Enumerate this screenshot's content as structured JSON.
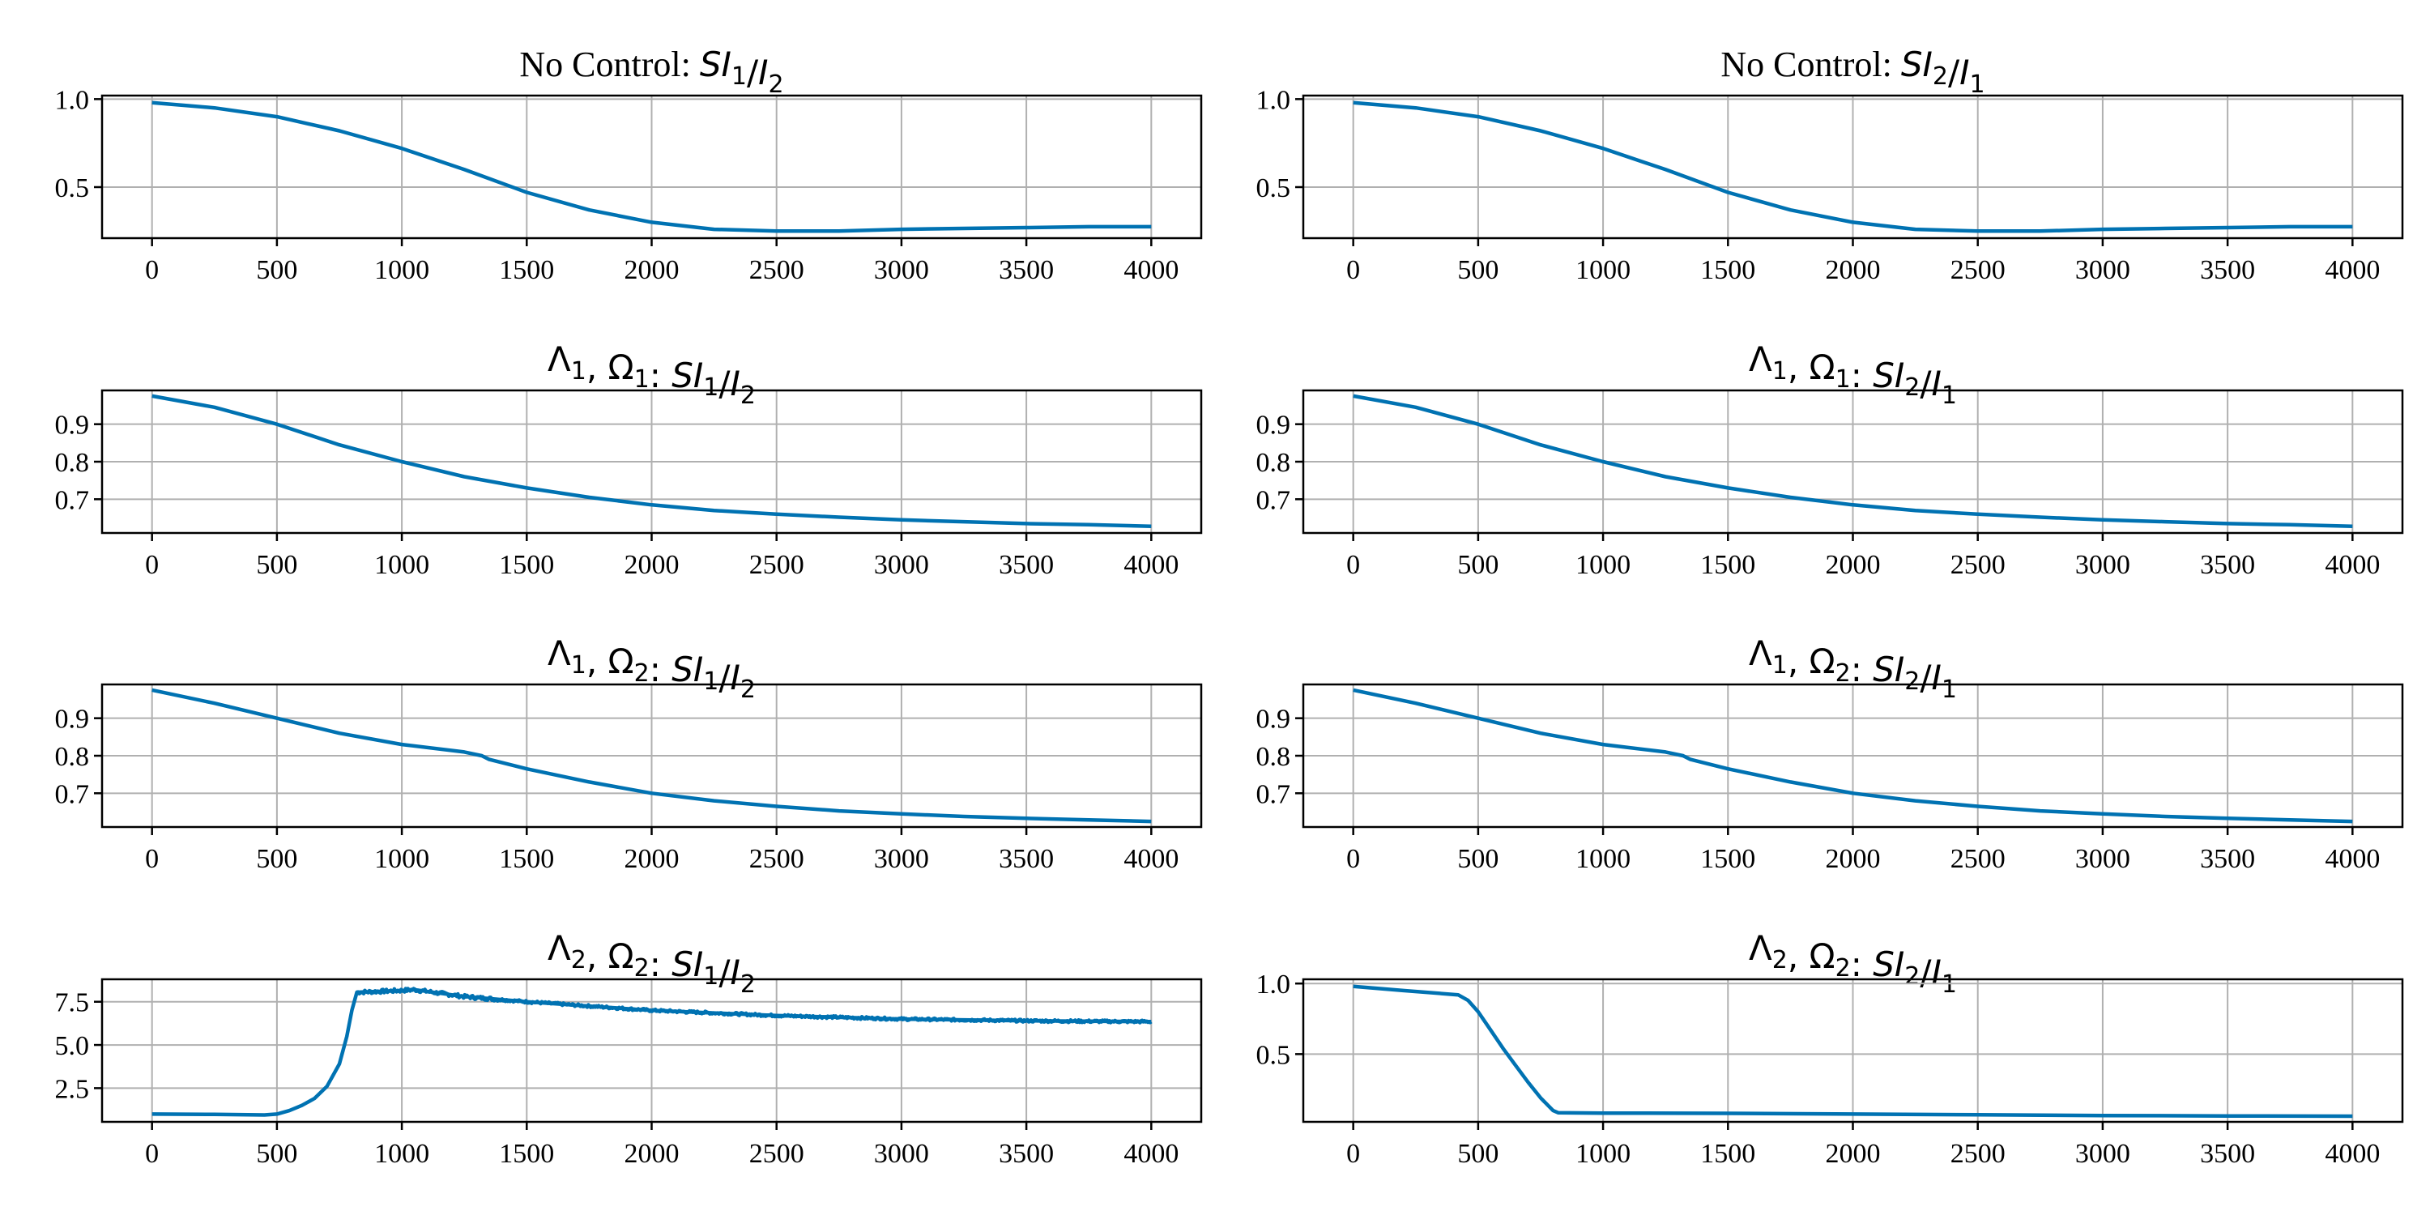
{
  "chart_data": [
    {
      "type": "line",
      "title": "No Control: SI1/I2",
      "title_parts": [
        "No Control:  ",
        "SI",
        "1",
        "/",
        "I",
        "2"
      ],
      "x_ticks": [
        "0",
        "500",
        "1000",
        "1500",
        "2000",
        "2500",
        "3000",
        "3500",
        "4000"
      ],
      "y_ticks": [
        "0.5",
        "1.0"
      ],
      "y_tick_values": [
        0.5,
        1.0
      ],
      "xlim": [
        -200,
        4200
      ],
      "ylim": [
        0.21,
        1.02
      ],
      "grid": true,
      "color": "#0072b2",
      "series": [
        {
          "x": [
            0,
            250,
            500,
            750,
            1000,
            1250,
            1500,
            1750,
            2000,
            2250,
            2500,
            2750,
            3000,
            3250,
            3500,
            3750,
            4000
          ],
          "y": [
            0.98,
            0.95,
            0.9,
            0.82,
            0.72,
            0.6,
            0.47,
            0.37,
            0.3,
            0.26,
            0.25,
            0.25,
            0.26,
            0.265,
            0.27,
            0.275,
            0.275
          ]
        }
      ]
    },
    {
      "type": "line",
      "title": "No Control: SI2/I1",
      "title_parts": [
        "No Control:  ",
        "SI",
        "2",
        "/",
        "I",
        "1"
      ],
      "x_ticks": [
        "0",
        "500",
        "1000",
        "1500",
        "2000",
        "2500",
        "3000",
        "3500",
        "4000"
      ],
      "y_ticks": [
        "0.5",
        "1.0"
      ],
      "y_tick_values": [
        0.5,
        1.0
      ],
      "xlim": [
        -200,
        4200
      ],
      "ylim": [
        0.21,
        1.02
      ],
      "grid": true,
      "color": "#0072b2",
      "series": [
        {
          "x": [
            0,
            250,
            500,
            750,
            1000,
            1250,
            1500,
            1750,
            2000,
            2250,
            2500,
            2750,
            3000,
            3250,
            3500,
            3750,
            4000
          ],
          "y": [
            0.98,
            0.95,
            0.9,
            0.82,
            0.72,
            0.6,
            0.47,
            0.37,
            0.3,
            0.26,
            0.25,
            0.25,
            0.26,
            0.265,
            0.27,
            0.275,
            0.275
          ]
        }
      ]
    },
    {
      "type": "line",
      "title": "Λ1, Ω1: SI1/I2",
      "title_parts": [
        "Λ",
        "1",
        ", Ω",
        "1",
        ":  ",
        "SI",
        "1",
        "/",
        "I",
        "2"
      ],
      "x_ticks": [
        "0",
        "500",
        "1000",
        "1500",
        "2000",
        "2500",
        "3000",
        "3500",
        "4000"
      ],
      "y_ticks": [
        "0.7",
        "0.8",
        "0.9"
      ],
      "y_tick_values": [
        0.7,
        0.8,
        0.9
      ],
      "xlim": [
        -200,
        4200
      ],
      "ylim": [
        0.61,
        0.99
      ],
      "grid": true,
      "color": "#0072b2",
      "series": [
        {
          "x": [
            0,
            250,
            500,
            750,
            1000,
            1250,
            1500,
            1750,
            2000,
            2250,
            2500,
            2750,
            3000,
            3250,
            3500,
            3750,
            4000
          ],
          "y": [
            0.975,
            0.945,
            0.9,
            0.845,
            0.8,
            0.76,
            0.73,
            0.705,
            0.685,
            0.67,
            0.66,
            0.652,
            0.645,
            0.64,
            0.635,
            0.632,
            0.628
          ]
        }
      ]
    },
    {
      "type": "line",
      "title": "Λ1, Ω1: SI2/I1",
      "title_parts": [
        "Λ",
        "1",
        ", Ω",
        "1",
        ":  ",
        "SI",
        "2",
        "/",
        "I",
        "1"
      ],
      "x_ticks": [
        "0",
        "500",
        "1000",
        "1500",
        "2000",
        "2500",
        "3000",
        "3500",
        "4000"
      ],
      "y_ticks": [
        "0.7",
        "0.8",
        "0.9"
      ],
      "y_tick_values": [
        0.7,
        0.8,
        0.9
      ],
      "xlim": [
        -200,
        4200
      ],
      "ylim": [
        0.61,
        0.99
      ],
      "grid": true,
      "color": "#0072b2",
      "series": [
        {
          "x": [
            0,
            250,
            500,
            750,
            1000,
            1250,
            1500,
            1750,
            2000,
            2250,
            2500,
            2750,
            3000,
            3250,
            3500,
            3750,
            4000
          ],
          "y": [
            0.975,
            0.945,
            0.9,
            0.845,
            0.8,
            0.76,
            0.73,
            0.705,
            0.685,
            0.67,
            0.66,
            0.652,
            0.645,
            0.64,
            0.635,
            0.632,
            0.628
          ]
        }
      ]
    },
    {
      "type": "line",
      "title": "Λ1, Ω2: SI1/I2",
      "title_parts": [
        "Λ",
        "1",
        ", Ω",
        "2",
        ":  ",
        "SI",
        "1",
        "/",
        "I",
        "2"
      ],
      "x_ticks": [
        "0",
        "500",
        "1000",
        "1500",
        "2000",
        "2500",
        "3000",
        "3500",
        "4000"
      ],
      "y_ticks": [
        "0.7",
        "0.8",
        "0.9"
      ],
      "y_tick_values": [
        0.7,
        0.8,
        0.9
      ],
      "xlim": [
        -200,
        4200
      ],
      "ylim": [
        0.61,
        0.99
      ],
      "grid": true,
      "color": "#0072b2",
      "series": [
        {
          "x": [
            0,
            250,
            500,
            750,
            1000,
            1250,
            1320,
            1350,
            1500,
            1750,
            2000,
            2250,
            2500,
            2750,
            3000,
            3250,
            3500,
            3750,
            4000
          ],
          "y": [
            0.975,
            0.94,
            0.9,
            0.86,
            0.83,
            0.81,
            0.8,
            0.79,
            0.765,
            0.73,
            0.7,
            0.68,
            0.665,
            0.653,
            0.645,
            0.638,
            0.633,
            0.629,
            0.625
          ]
        }
      ]
    },
    {
      "type": "line",
      "title": "Λ1, Ω2: SI2/I1",
      "title_parts": [
        "Λ",
        "1",
        ", Ω",
        "2",
        ":  ",
        "SI",
        "2",
        "/",
        "I",
        "1"
      ],
      "x_ticks": [
        "0",
        "500",
        "1000",
        "1500",
        "2000",
        "2500",
        "3000",
        "3500",
        "4000"
      ],
      "y_ticks": [
        "0.7",
        "0.8",
        "0.9"
      ],
      "y_tick_values": [
        0.7,
        0.8,
        0.9
      ],
      "xlim": [
        -200,
        4200
      ],
      "ylim": [
        0.61,
        0.99
      ],
      "grid": true,
      "color": "#0072b2",
      "series": [
        {
          "x": [
            0,
            250,
            500,
            750,
            1000,
            1250,
            1320,
            1350,
            1500,
            1750,
            2000,
            2250,
            2500,
            2750,
            3000,
            3250,
            3500,
            3750,
            4000
          ],
          "y": [
            0.975,
            0.94,
            0.9,
            0.86,
            0.83,
            0.81,
            0.8,
            0.79,
            0.765,
            0.73,
            0.7,
            0.68,
            0.665,
            0.653,
            0.645,
            0.638,
            0.633,
            0.629,
            0.625
          ]
        }
      ]
    },
    {
      "type": "line",
      "title": "Λ2, Ω2: SI1/I2",
      "title_parts": [
        "Λ",
        "2",
        ", Ω",
        "2",
        ":  ",
        "SI",
        "1",
        "/",
        "I",
        "2"
      ],
      "x_ticks": [
        "0",
        "500",
        "1000",
        "1500",
        "2000",
        "2500",
        "3000",
        "3500",
        "4000"
      ],
      "y_ticks": [
        "2.5",
        "5.0",
        "7.5"
      ],
      "y_tick_values": [
        2.5,
        5.0,
        7.5
      ],
      "xlim": [
        -200,
        4200
      ],
      "ylim": [
        0.55,
        8.8
      ],
      "grid": true,
      "color": "#0072b2",
      "noisy_from_x": 820,
      "series": [
        {
          "x": [
            0,
            250,
            450,
            500,
            550,
            600,
            650,
            700,
            750,
            780,
            800,
            820,
            1000,
            1050,
            1250,
            1500,
            1750,
            2000,
            2250,
            2500,
            2750,
            3000,
            3250,
            3500,
            3750,
            4000
          ],
          "y": [
            1.0,
            0.98,
            0.95,
            1.0,
            1.2,
            1.5,
            1.9,
            2.6,
            3.9,
            5.5,
            7.0,
            8.05,
            8.15,
            8.2,
            7.8,
            7.5,
            7.25,
            7.0,
            6.85,
            6.7,
            6.6,
            6.5,
            6.45,
            6.4,
            6.37,
            6.35
          ]
        }
      ]
    },
    {
      "type": "line",
      "title": "Λ2, Ω2: SI2/I1",
      "title_parts": [
        "Λ",
        "2",
        ", Ω",
        "2",
        ":  ",
        "SI",
        "2",
        "/",
        "I",
        "1"
      ],
      "x_ticks": [
        "0",
        "500",
        "1000",
        "1500",
        "2000",
        "2500",
        "3000",
        "3500",
        "4000"
      ],
      "y_ticks": [
        "0.5",
        "1.0"
      ],
      "y_tick_values": [
        0.5,
        1.0
      ],
      "xlim": [
        -200,
        4200
      ],
      "ylim": [
        0.02,
        1.03
      ],
      "grid": true,
      "color": "#0072b2",
      "series": [
        {
          "x": [
            0,
            200,
            420,
            460,
            500,
            550,
            600,
            650,
            700,
            750,
            800,
            820,
            1000,
            1500,
            2000,
            2500,
            3000,
            3500,
            4000
          ],
          "y": [
            0.98,
            0.95,
            0.92,
            0.88,
            0.8,
            0.67,
            0.54,
            0.42,
            0.3,
            0.19,
            0.1,
            0.085,
            0.082,
            0.08,
            0.075,
            0.07,
            0.065,
            0.062,
            0.06
          ]
        }
      ]
    }
  ]
}
